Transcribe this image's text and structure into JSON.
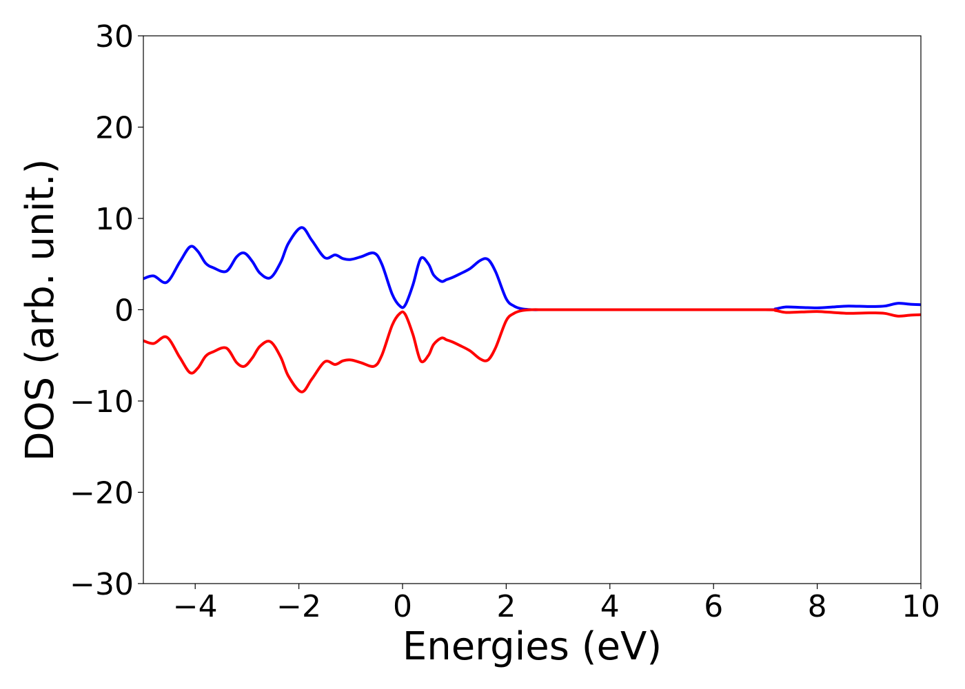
{
  "chart_data": {
    "type": "line",
    "title": "",
    "xlabel": "Energies (eV)",
    "ylabel": "DOS (arb. unit.)",
    "xlim": [
      -5,
      10
    ],
    "ylim": [
      -30,
      30
    ],
    "x_ticks": [
      -4,
      -2,
      0,
      2,
      4,
      6,
      8,
      10
    ],
    "x_tick_labels": [
      "−4",
      "−2",
      "0",
      "2",
      "4",
      "6",
      "8",
      "10"
    ],
    "y_ticks": [
      -30,
      -20,
      -10,
      0,
      10,
      20,
      30
    ],
    "y_tick_labels": [
      "−30",
      "−20",
      "−10",
      "0",
      "10",
      "20",
      "30"
    ],
    "grid": false,
    "legend": "none",
    "series": [
      {
        "color": "#0000ff",
        "x": [
          -5.0,
          -4.8,
          -4.55,
          -4.3,
          -4.1,
          -3.95,
          -3.8,
          -3.65,
          -3.4,
          -3.2,
          -3.05,
          -2.9,
          -2.75,
          -2.55,
          -2.35,
          -2.2,
          -1.95,
          -1.75,
          -1.5,
          -1.3,
          -1.15,
          -1.0,
          -0.8,
          -0.55,
          -0.4,
          -0.2,
          -0.05,
          0.05,
          0.2,
          0.35,
          0.5,
          0.6,
          0.75,
          0.85,
          0.95,
          1.1,
          1.3,
          1.5,
          1.65,
          1.8,
          2.0,
          2.15,
          2.3,
          2.5,
          2.7,
          3.0,
          5.0,
          7.0,
          7.2,
          7.4,
          7.7,
          8.0,
          8.3,
          8.6,
          9.0,
          9.3,
          9.55,
          9.8,
          10.0
        ],
        "y": [
          3.4,
          3.7,
          3.0,
          5.2,
          6.9,
          6.4,
          5.1,
          4.6,
          4.2,
          5.8,
          6.2,
          5.3,
          4.0,
          3.5,
          5.2,
          7.3,
          9.0,
          7.6,
          5.7,
          6.0,
          5.6,
          5.5,
          5.8,
          6.2,
          5.0,
          1.7,
          0.4,
          0.5,
          2.7,
          5.6,
          5.0,
          3.8,
          3.1,
          3.3,
          3.5,
          3.9,
          4.5,
          5.4,
          5.5,
          4.1,
          1.2,
          0.4,
          0.1,
          0.0,
          0.0,
          0.0,
          0.0,
          0.0,
          0.1,
          0.3,
          0.25,
          0.2,
          0.3,
          0.4,
          0.35,
          0.4,
          0.7,
          0.6,
          0.55
        ]
      },
      {
        "color": "#ff0000",
        "x": [
          -5.0,
          -4.8,
          -4.55,
          -4.3,
          -4.1,
          -3.95,
          -3.8,
          -3.65,
          -3.4,
          -3.2,
          -3.05,
          -2.9,
          -2.75,
          -2.55,
          -2.35,
          -2.2,
          -1.95,
          -1.75,
          -1.5,
          -1.3,
          -1.15,
          -1.0,
          -0.8,
          -0.55,
          -0.4,
          -0.2,
          -0.05,
          0.05,
          0.2,
          0.35,
          0.5,
          0.6,
          0.75,
          0.85,
          0.95,
          1.1,
          1.3,
          1.5,
          1.65,
          1.8,
          2.0,
          2.15,
          2.3,
          2.5,
          2.7,
          3.0,
          5.0,
          7.0,
          7.2,
          7.4,
          7.7,
          8.0,
          8.3,
          8.6,
          9.0,
          9.3,
          9.55,
          9.8,
          10.0
        ],
        "y": [
          -3.4,
          -3.7,
          -3.0,
          -5.2,
          -6.9,
          -6.4,
          -5.1,
          -4.6,
          -4.2,
          -5.8,
          -6.2,
          -5.3,
          -4.0,
          -3.5,
          -5.2,
          -7.3,
          -9.0,
          -7.6,
          -5.7,
          -6.0,
          -5.6,
          -5.5,
          -5.8,
          -6.2,
          -5.0,
          -1.7,
          -0.4,
          -0.5,
          -2.7,
          -5.6,
          -5.0,
          -3.8,
          -3.1,
          -3.3,
          -3.5,
          -3.9,
          -4.5,
          -5.4,
          -5.5,
          -4.1,
          -1.2,
          -0.4,
          -0.1,
          0.0,
          0.0,
          0.0,
          0.0,
          0.0,
          -0.1,
          -0.3,
          -0.25,
          -0.2,
          -0.3,
          -0.4,
          -0.35,
          -0.4,
          -0.7,
          -0.6,
          -0.55
        ]
      }
    ]
  }
}
